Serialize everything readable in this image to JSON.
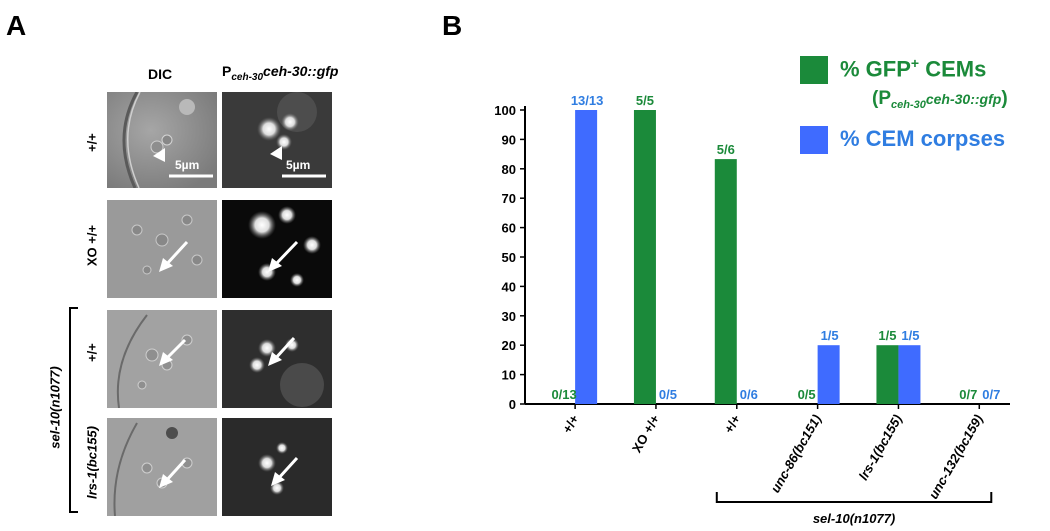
{
  "panel_a": {
    "label": "A",
    "col_heads": {
      "dic": "DIC",
      "gfp_p": "P",
      "gfp_sub": "ceh-30",
      "gfp_sup": "ceh-30::gfp"
    },
    "rows": [
      "+/+",
      "XO +/+",
      "+/+",
      "lrs-1(bc155)"
    ],
    "bracket_label": "sel-10(n1077)",
    "scale_label": "5µm"
  },
  "panel_b": {
    "label": "B",
    "legend": {
      "green_main": "% GFP",
      "green_sup": "+",
      "green_rest": " CEMs",
      "green_line2_open": "(P",
      "green_line2_sub": "ceh-30",
      "green_line2_gene": "ceh-30::gfp",
      "green_line2_close": ")",
      "blue": "% CEM corpses"
    },
    "bracket_label": "sel-10(n1077)"
  },
  "colors": {
    "green": "#1b8a3a",
    "blue": "#3f6bff",
    "blue_label": "#2f7de1"
  },
  "chart_data": {
    "type": "bar",
    "categories": [
      "+/+",
      "XO +/+",
      "+/+",
      "unc-86(bc151)",
      "lrs-1(bc155)",
      "unc-132(bc159)"
    ],
    "series": [
      {
        "name": "% GFP+ CEMs",
        "color": "#1b8a3a",
        "values": [
          0,
          100,
          83.3,
          0,
          20,
          0
        ],
        "labels": [
          "0/13",
          "5/5",
          "5/6",
          "0/5",
          "1/5",
          "0/7"
        ]
      },
      {
        "name": "% CEM corpses",
        "color": "#3f6bff",
        "values": [
          100,
          0,
          0,
          20,
          20,
          0
        ],
        "labels": [
          "13/13",
          "0/5",
          "0/6",
          "1/5",
          "1/5",
          "0/7"
        ]
      }
    ],
    "yticks": [
      0,
      10,
      20,
      30,
      40,
      50,
      60,
      70,
      80,
      90,
      100
    ],
    "ylim": [
      0,
      100
    ],
    "xlabel": "",
    "ylabel": "",
    "legend_position": "top-right",
    "grid": false
  }
}
